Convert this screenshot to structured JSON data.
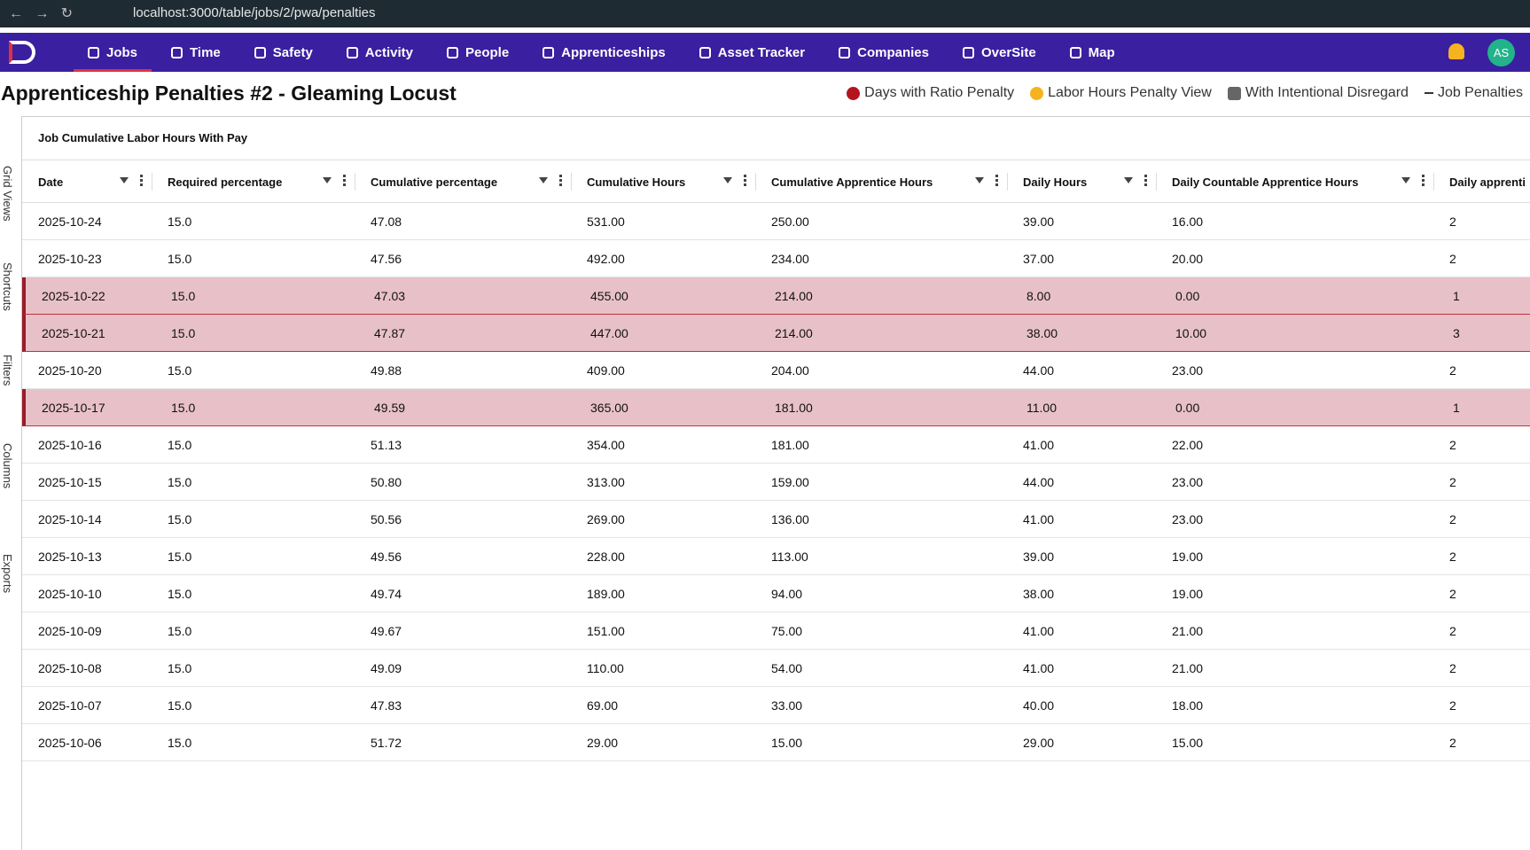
{
  "browser": {
    "url": "localhost:3000/table/jobs/2/pwa/penalties"
  },
  "nav": {
    "items": [
      "Jobs",
      "Time",
      "Safety",
      "Activity",
      "People",
      "Apprenticeships",
      "Asset Tracker",
      "Companies",
      "OverSite",
      "Map"
    ],
    "active": 0,
    "avatar": "AS"
  },
  "header": {
    "title": "Apprenticeship Penalties #2 - Gleaming Locust",
    "links": [
      "Days with Ratio Penalty",
      "Labor Hours Penalty View",
      "With Intentional Disregard",
      "Job Penalties"
    ]
  },
  "sidebar": {
    "tabs": [
      "Grid Views",
      "Shortcuts",
      "Filters",
      "Columns",
      "Exports"
    ]
  },
  "table": {
    "title": "Job Cumulative Labor Hours With Pay",
    "columns": [
      "Date",
      "Required percentage",
      "Cumulative percentage",
      "Cumulative Hours",
      "Cumulative Apprentice Hours",
      "Daily Hours",
      "Daily Countable Apprentice Hours",
      "Daily apprenti"
    ],
    "rows": [
      {
        "cells": [
          "2025-10-24",
          "15.0",
          "47.08",
          "531.00",
          "250.00",
          "39.00",
          "16.00",
          "2"
        ],
        "penalty": false
      },
      {
        "cells": [
          "2025-10-23",
          "15.0",
          "47.56",
          "492.00",
          "234.00",
          "37.00",
          "20.00",
          "2"
        ],
        "penalty": false
      },
      {
        "cells": [
          "2025-10-22",
          "15.0",
          "47.03",
          "455.00",
          "214.00",
          "8.00",
          "0.00",
          "1"
        ],
        "penalty": true
      },
      {
        "cells": [
          "2025-10-21",
          "15.0",
          "47.87",
          "447.00",
          "214.00",
          "38.00",
          "10.00",
          "3"
        ],
        "penalty": true
      },
      {
        "cells": [
          "2025-10-20",
          "15.0",
          "49.88",
          "409.00",
          "204.00",
          "44.00",
          "23.00",
          "2"
        ],
        "penalty": false
      },
      {
        "cells": [
          "2025-10-17",
          "15.0",
          "49.59",
          "365.00",
          "181.00",
          "11.00",
          "0.00",
          "1"
        ],
        "penalty": true
      },
      {
        "cells": [
          "2025-10-16",
          "15.0",
          "51.13",
          "354.00",
          "181.00",
          "41.00",
          "22.00",
          "2"
        ],
        "penalty": false
      },
      {
        "cells": [
          "2025-10-15",
          "15.0",
          "50.80",
          "313.00",
          "159.00",
          "44.00",
          "23.00",
          "2"
        ],
        "penalty": false
      },
      {
        "cells": [
          "2025-10-14",
          "15.0",
          "50.56",
          "269.00",
          "136.00",
          "41.00",
          "23.00",
          "2"
        ],
        "penalty": false
      },
      {
        "cells": [
          "2025-10-13",
          "15.0",
          "49.56",
          "228.00",
          "113.00",
          "39.00",
          "19.00",
          "2"
        ],
        "penalty": false
      },
      {
        "cells": [
          "2025-10-10",
          "15.0",
          "49.74",
          "189.00",
          "94.00",
          "38.00",
          "19.00",
          "2"
        ],
        "penalty": false
      },
      {
        "cells": [
          "2025-10-09",
          "15.0",
          "49.67",
          "151.00",
          "75.00",
          "41.00",
          "21.00",
          "2"
        ],
        "penalty": false
      },
      {
        "cells": [
          "2025-10-08",
          "15.0",
          "49.09",
          "110.00",
          "54.00",
          "41.00",
          "21.00",
          "2"
        ],
        "penalty": false
      },
      {
        "cells": [
          "2025-10-07",
          "15.0",
          "47.83",
          "69.00",
          "33.00",
          "40.00",
          "18.00",
          "2"
        ],
        "penalty": false
      },
      {
        "cells": [
          "2025-10-06",
          "15.0",
          "51.72",
          "29.00",
          "15.00",
          "29.00",
          "15.00",
          "2"
        ],
        "penalty": false
      }
    ]
  }
}
